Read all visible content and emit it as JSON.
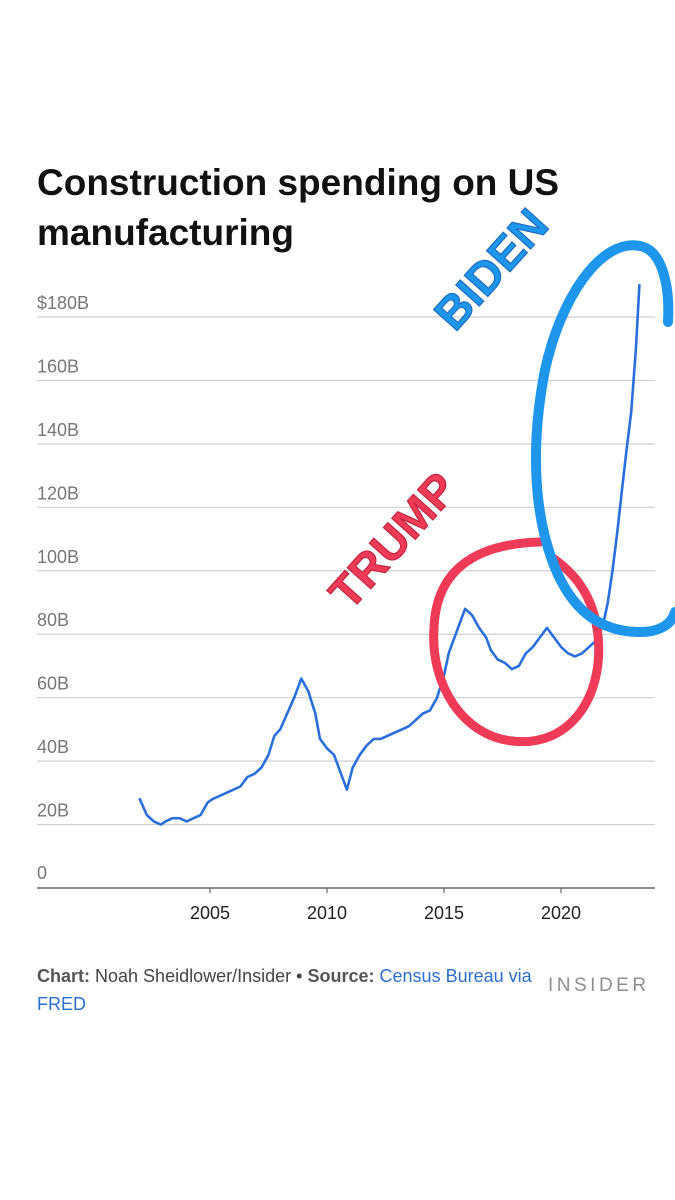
{
  "chart_data": {
    "type": "line",
    "title": "Construction spending on US manufacturing",
    "y_ticks": [
      "$180B",
      "160B",
      "140B",
      "120B",
      "100B",
      "80B",
      "60B",
      "40B",
      "20B",
      "0"
    ],
    "x_ticks": [
      "2005",
      "2010",
      "2015",
      "2020"
    ],
    "ylim": [
      0,
      180
    ],
    "xlim": [
      2002,
      2023.5
    ],
    "unit": "billions of dollars",
    "grid": true,
    "series": [
      {
        "color": "#2a6fdb",
        "x": [
          2002.0,
          2002.3,
          2002.6,
          2002.9,
          2003.1,
          2003.4,
          2003.7,
          2004.0,
          2004.3,
          2004.6,
          2004.9,
          2005.1,
          2005.4,
          2005.7,
          2006.0,
          2006.3,
          2006.6,
          2006.9,
          2007.2,
          2007.5,
          2007.75,
          2008.0,
          2008.3,
          2008.6,
          2008.9,
          2009.2,
          2009.5,
          2009.7,
          2010.0,
          2010.3,
          2010.6,
          2010.85,
          2011.1,
          2011.4,
          2011.7,
          2012.0,
          2012.3,
          2012.6,
          2012.9,
          2013.2,
          2013.5,
          2013.8,
          2014.1,
          2014.4,
          2014.7,
          2015.0,
          2015.2,
          2015.35,
          2015.6,
          2015.9,
          2016.2,
          2016.5,
          2016.8,
          2017.0,
          2017.3,
          2017.6,
          2017.9,
          2018.2,
          2018.5,
          2018.8,
          2019.1,
          2019.4,
          2019.7,
          2020.0,
          2020.3,
          2020.6,
          2020.9,
          2021.2,
          2021.5,
          2021.8,
          2022.0,
          2022.2,
          2022.4,
          2022.6,
          2022.8,
          2023.0,
          2023.2,
          2023.35
        ],
        "y": [
          28,
          23,
          21,
          20,
          21,
          22,
          22,
          21,
          22,
          23,
          27,
          28,
          29,
          30,
          31,
          32,
          35,
          36,
          38,
          42,
          48,
          50,
          55,
          60,
          66,
          62,
          55,
          47,
          44,
          42,
          36,
          31,
          38,
          42,
          45,
          47,
          47,
          48,
          49,
          50,
          51,
          53,
          55,
          56,
          60,
          67,
          74,
          77,
          82,
          88,
          86,
          82,
          79,
          75,
          72,
          71,
          69,
          70,
          74,
          76,
          79,
          82,
          79,
          76,
          74,
          73,
          74,
          76,
          78,
          83,
          90,
          100,
          112,
          125,
          138,
          150,
          170,
          190
        ]
      }
    ]
  },
  "footer": {
    "chart_label": "Chart:",
    "chart_credit": "Noah Sheidlower/Insider",
    "separator": "•",
    "source_label": "Source:",
    "source_text": "Census Bureau via FRED"
  },
  "brand": "INSIDER",
  "annotations": [
    {
      "text": "BIDEN",
      "color": "#1e96ec"
    },
    {
      "text": "TRUMP",
      "color": "#ef3b57"
    }
  ]
}
